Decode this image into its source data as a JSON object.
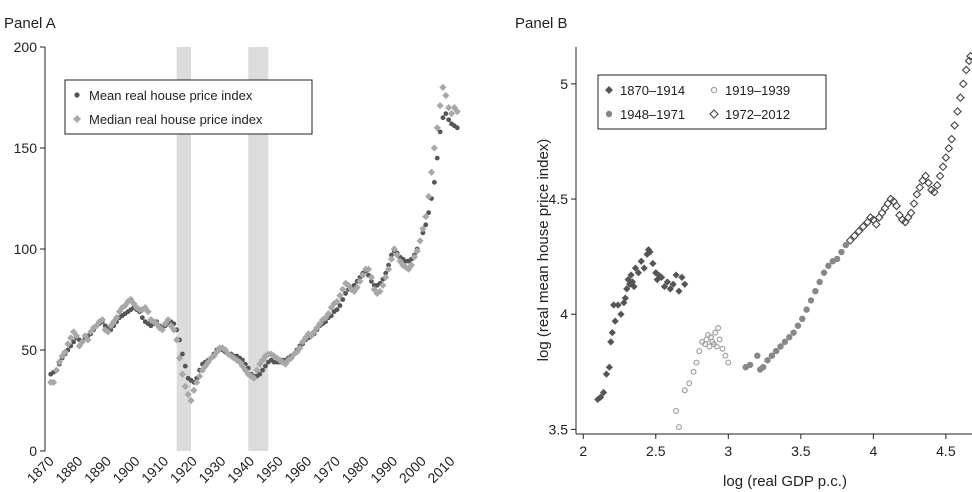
{
  "chart_data": [
    {
      "panel_label": "Panel A",
      "type": "scatter",
      "xlabel": "",
      "ylabel": "",
      "xlim": [
        1868,
        2014
      ],
      "ylim": [
        0,
        200
      ],
      "x_ticks": [
        1870,
        1880,
        1890,
        1900,
        1910,
        1920,
        1930,
        1940,
        1950,
        1960,
        1970,
        1980,
        1990,
        2000,
        2010
      ],
      "y_ticks": [
        0,
        50,
        100,
        150,
        200
      ],
      "shaded_periods": [
        [
          1914,
          1919
        ],
        [
          1939,
          1946
        ]
      ],
      "legend_position": "top-left",
      "series": [
        {
          "name": "Mean real house price index",
          "marker": "circle",
          "color": "#555555",
          "x": [
            1870,
            1871,
            1872,
            1873,
            1874,
            1875,
            1876,
            1877,
            1878,
            1879,
            1880,
            1881,
            1882,
            1883,
            1884,
            1885,
            1886,
            1887,
            1888,
            1889,
            1890,
            1891,
            1892,
            1893,
            1894,
            1895,
            1896,
            1897,
            1898,
            1899,
            1900,
            1901,
            1902,
            1903,
            1904,
            1905,
            1906,
            1907,
            1908,
            1909,
            1910,
            1911,
            1912,
            1913,
            1914,
            1915,
            1916,
            1917,
            1918,
            1919,
            1920,
            1921,
            1922,
            1923,
            1924,
            1925,
            1926,
            1927,
            1928,
            1929,
            1930,
            1931,
            1932,
            1933,
            1934,
            1935,
            1936,
            1937,
            1938,
            1939,
            1940,
            1941,
            1942,
            1943,
            1944,
            1945,
            1946,
            1947,
            1948,
            1949,
            1950,
            1951,
            1952,
            1953,
            1954,
            1955,
            1956,
            1957,
            1958,
            1959,
            1960,
            1961,
            1962,
            1963,
            1964,
            1965,
            1966,
            1967,
            1968,
            1969,
            1970,
            1971,
            1972,
            1973,
            1974,
            1975,
            1976,
            1977,
            1978,
            1979,
            1980,
            1981,
            1982,
            1983,
            1984,
            1985,
            1986,
            1987,
            1988,
            1989,
            1990,
            1991,
            1992,
            1993,
            1994,
            1995,
            1996,
            1997,
            1998,
            1999,
            2000,
            2001,
            2002,
            2003,
            2004,
            2005,
            2006,
            2007,
            2008,
            2009,
            2010,
            2011,
            2012
          ],
          "y": [
            38,
            39,
            40,
            43,
            46,
            48,
            50,
            52,
            54,
            56,
            55,
            54,
            56,
            57,
            58,
            60,
            62,
            63,
            64,
            62,
            61,
            60,
            62,
            64,
            66,
            67,
            68,
            69,
            70,
            71,
            70,
            69,
            66,
            64,
            63,
            62,
            63,
            64,
            62,
            61,
            62,
            63,
            64,
            63,
            60,
            55,
            48,
            42,
            36,
            35,
            34,
            36,
            40,
            43,
            44,
            45,
            46,
            48,
            50,
            51,
            50,
            49,
            48,
            48,
            47,
            47,
            46,
            45,
            43,
            41,
            38,
            37,
            37,
            38,
            40,
            42,
            44,
            45,
            44,
            44,
            44,
            45,
            45,
            46,
            47,
            48,
            50,
            52,
            53,
            55,
            56,
            57,
            58,
            60,
            62,
            63,
            64,
            66,
            67,
            69,
            70,
            72,
            75,
            78,
            80,
            81,
            82,
            84,
            86,
            88,
            89,
            87,
            84,
            82,
            82,
            83,
            85,
            88,
            92,
            97,
            99,
            98,
            96,
            95,
            94,
            94,
            95,
            97,
            100,
            104,
            108,
            112,
            118,
            125,
            133,
            145,
            158,
            165,
            167,
            164,
            162,
            161,
            160
          ]
        },
        {
          "name": "Median real house price index",
          "marker": "diamond",
          "color": "#a8a8a8",
          "x": [
            1870,
            1871,
            1872,
            1873,
            1874,
            1875,
            1876,
            1877,
            1878,
            1879,
            1880,
            1881,
            1882,
            1883,
            1884,
            1885,
            1886,
            1887,
            1888,
            1889,
            1890,
            1891,
            1892,
            1893,
            1894,
            1895,
            1896,
            1897,
            1898,
            1899,
            1900,
            1901,
            1902,
            1903,
            1904,
            1905,
            1906,
            1907,
            1908,
            1909,
            1910,
            1911,
            1912,
            1913,
            1914,
            1915,
            1916,
            1917,
            1918,
            1919,
            1920,
            1921,
            1922,
            1923,
            1924,
            1925,
            1926,
            1927,
            1928,
            1929,
            1930,
            1931,
            1932,
            1933,
            1934,
            1935,
            1936,
            1937,
            1938,
            1939,
            1940,
            1941,
            1942,
            1943,
            1944,
            1945,
            1946,
            1947,
            1948,
            1949,
            1950,
            1951,
            1952,
            1953,
            1954,
            1955,
            1956,
            1957,
            1958,
            1959,
            1960,
            1961,
            1962,
            1963,
            1964,
            1965,
            1966,
            1967,
            1968,
            1969,
            1970,
            1971,
            1972,
            1973,
            1974,
            1975,
            1976,
            1977,
            1978,
            1979,
            1980,
            1981,
            1982,
            1983,
            1984,
            1985,
            1986,
            1987,
            1988,
            1989,
            1990,
            1991,
            1992,
            1993,
            1994,
            1995,
            1996,
            1997,
            1998,
            1999,
            2000,
            2001,
            2002,
            2003,
            2004,
            2005,
            2006,
            2007,
            2008,
            2009,
            2010,
            2011,
            2012
          ],
          "y": [
            34,
            34,
            40,
            44,
            47,
            49,
            53,
            56,
            59,
            57,
            52,
            54,
            57,
            55,
            59,
            61,
            62,
            64,
            65,
            60,
            59,
            62,
            64,
            66,
            69,
            71,
            72,
            74,
            75,
            73,
            71,
            70,
            70,
            71,
            69,
            65,
            64,
            63,
            61,
            60,
            63,
            65,
            62,
            60,
            55,
            46,
            38,
            32,
            28,
            25,
            30,
            34,
            37,
            40,
            42,
            44,
            46,
            47,
            49,
            51,
            51,
            50,
            48,
            47,
            46,
            45,
            44,
            42,
            40,
            38,
            37,
            36,
            40,
            43,
            45,
            47,
            48,
            48,
            47,
            46,
            45,
            44,
            43,
            45,
            46,
            48,
            49,
            51,
            54,
            56,
            58,
            57,
            59,
            61,
            63,
            65,
            66,
            68,
            71,
            73,
            74,
            77,
            80,
            83,
            82,
            80,
            79,
            81,
            84,
            87,
            90,
            90,
            86,
            80,
            78,
            79,
            82,
            86,
            90,
            95,
            100,
            97,
            94,
            92,
            91,
            90,
            92,
            96,
            99,
            104,
            110,
            116,
            126,
            138,
            150,
            160,
            171,
            180,
            176,
            170,
            167,
            170,
            168
          ]
        }
      ]
    },
    {
      "panel_label": "Panel B",
      "type": "scatter",
      "xlabel": "log (real GDP p.c.)",
      "ylabel": "log (real mean house price index)",
      "xlim": [
        1.95,
        4.68
      ],
      "ylim": [
        3.48,
        5.16
      ],
      "x_ticks": [
        2,
        2.5,
        3,
        3.5,
        4,
        4.5
      ],
      "y_ticks": [
        3.5,
        4,
        4.5,
        5
      ],
      "legend_position": "top-left",
      "series": [
        {
          "name": "1870–1914",
          "marker": "diamond-filled",
          "color": "#555555",
          "x": [
            2.1,
            2.12,
            2.14,
            2.16,
            2.18,
            2.19,
            2.2,
            2.21,
            2.22,
            2.24,
            2.26,
            2.28,
            2.29,
            2.3,
            2.31,
            2.32,
            2.33,
            2.34,
            2.35,
            2.36,
            2.38,
            2.4,
            2.42,
            2.44,
            2.45,
            2.46,
            2.48,
            2.5,
            2.51,
            2.52,
            2.54,
            2.56,
            2.58,
            2.6,
            2.62,
            2.64,
            2.66,
            2.68,
            2.7
          ],
          "y": [
            3.63,
            3.64,
            3.66,
            3.74,
            3.77,
            3.88,
            3.92,
            4.04,
            3.97,
            4.04,
            4.0,
            4.05,
            4.07,
            4.11,
            4.15,
            4.13,
            4.17,
            4.14,
            4.12,
            4.2,
            4.18,
            4.23,
            4.2,
            4.26,
            4.28,
            4.27,
            4.22,
            4.18,
            4.15,
            4.17,
            4.16,
            4.12,
            4.14,
            4.11,
            4.13,
            4.17,
            4.1,
            4.16,
            4.13
          ]
        },
        {
          "name": "1919–1939",
          "marker": "circle-open",
          "color": "#a0a0a0",
          "x": [
            2.64,
            2.66,
            2.7,
            2.73,
            2.76,
            2.78,
            2.8,
            2.82,
            2.84,
            2.85,
            2.86,
            2.87,
            2.88,
            2.89,
            2.9,
            2.91,
            2.92,
            2.93,
            2.94,
            2.96,
            2.98,
            3.0
          ],
          "y": [
            3.58,
            3.51,
            3.67,
            3.7,
            3.75,
            3.79,
            3.84,
            3.88,
            3.87,
            3.89,
            3.91,
            3.86,
            3.9,
            3.88,
            3.87,
            3.92,
            3.86,
            3.94,
            3.89,
            3.85,
            3.82,
            3.79
          ]
        },
        {
          "name": "1948–1971",
          "marker": "circle-filled",
          "color": "#888888",
          "x": [
            3.12,
            3.15,
            3.2,
            3.22,
            3.24,
            3.27,
            3.3,
            3.33,
            3.36,
            3.39,
            3.42,
            3.45,
            3.48,
            3.51,
            3.54,
            3.57,
            3.6,
            3.63,
            3.66,
            3.69,
            3.72,
            3.75,
            3.78,
            3.81
          ],
          "y": [
            3.77,
            3.78,
            3.82,
            3.76,
            3.77,
            3.8,
            3.82,
            3.84,
            3.86,
            3.88,
            3.9,
            3.92,
            3.95,
            3.98,
            4.02,
            4.06,
            4.1,
            4.14,
            4.18,
            4.21,
            4.23,
            4.24,
            4.27,
            4.3
          ]
        },
        {
          "name": "1972–2012",
          "marker": "diamond-open",
          "color": "#444444",
          "x": [
            3.84,
            3.87,
            3.9,
            3.93,
            3.96,
            3.98,
            4.0,
            4.02,
            4.04,
            4.06,
            4.08,
            4.1,
            4.12,
            4.14,
            4.16,
            4.18,
            4.2,
            4.22,
            4.24,
            4.26,
            4.28,
            4.3,
            4.32,
            4.34,
            4.36,
            4.38,
            4.4,
            4.42,
            4.44,
            4.46,
            4.48,
            4.5,
            4.52,
            4.54,
            4.56,
            4.58,
            4.6,
            4.62,
            4.64,
            4.66,
            4.67
          ],
          "y": [
            4.32,
            4.34,
            4.36,
            4.38,
            4.4,
            4.42,
            4.41,
            4.39,
            4.42,
            4.44,
            4.46,
            4.48,
            4.5,
            4.49,
            4.47,
            4.43,
            4.41,
            4.4,
            4.42,
            4.44,
            4.48,
            4.52,
            4.55,
            4.58,
            4.6,
            4.57,
            4.54,
            4.53,
            4.56,
            4.6,
            4.64,
            4.68,
            4.72,
            4.76,
            4.82,
            4.88,
            4.94,
            5.0,
            5.06,
            5.1,
            5.12
          ]
        }
      ]
    }
  ]
}
